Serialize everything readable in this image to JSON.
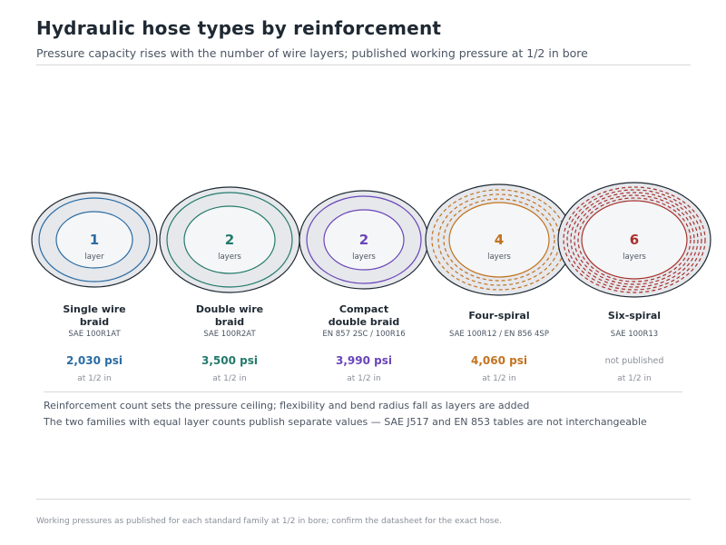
{
  "header": {
    "title": "Hydraulic hose types by reinforcement",
    "subtitle": "Pressure capacity rises with the number of wire layers; published working pressure at 1/2 in bore"
  },
  "hoses": [
    {
      "count": "1",
      "count_unit": "layer",
      "name_line1": "Single wire",
      "name_line2": "braid",
      "standard": "SAE 100R1AT",
      "pressure": "2,030 psi",
      "pressure_psi": 2030,
      "published": true,
      "bore_note": "at 1/2 in",
      "color": "#2b6ca3",
      "style": "solid"
    },
    {
      "count": "2",
      "count_unit": "layers",
      "name_line1": "Double wire",
      "name_line2": "braid",
      "standard": "SAE 100R2AT",
      "pressure": "3,500 psi",
      "pressure_psi": 3500,
      "published": true,
      "bore_note": "at 1/2 in",
      "color": "#237a6b",
      "style": "solid"
    },
    {
      "count": "2",
      "count_unit": "layers",
      "name_line1": "Compact",
      "name_line2": "double braid",
      "standard": "EN 857 2SC / 100R16",
      "pressure": "3,990 psi",
      "pressure_psi": 3990,
      "published": true,
      "bore_note": "at 1/2 in",
      "color": "#6a45b8",
      "style": "solid"
    },
    {
      "count": "4",
      "count_unit": "layers",
      "name_line1": "Four-spiral",
      "name_line2": "",
      "standard": "SAE 100R12 / EN 856 4SP",
      "pressure": "4,060 psi",
      "pressure_psi": 4060,
      "published": true,
      "bore_note": "at 1/2 in",
      "color": "#c27320",
      "style": "dashed"
    },
    {
      "count": "6",
      "count_unit": "layers",
      "name_line1": "Six-spiral",
      "name_line2": "",
      "standard": "SAE 100R13",
      "pressure": "not published",
      "pressure_psi": null,
      "published": false,
      "bore_note": "at 1/2 in",
      "color": "#a8322d",
      "style": "dashed"
    }
  ],
  "notes": {
    "line1": "Reinforcement count sets the pressure ceiling; flexibility and bend radius fall as layers are added",
    "line2": "The two families with equal layer counts publish separate values — SAE J517 and EN 853 tables are not interchangeable"
  },
  "footer": "Working pressures as published for each standard family at 1/2 in bore; confirm the datasheet for the exact hose."
}
